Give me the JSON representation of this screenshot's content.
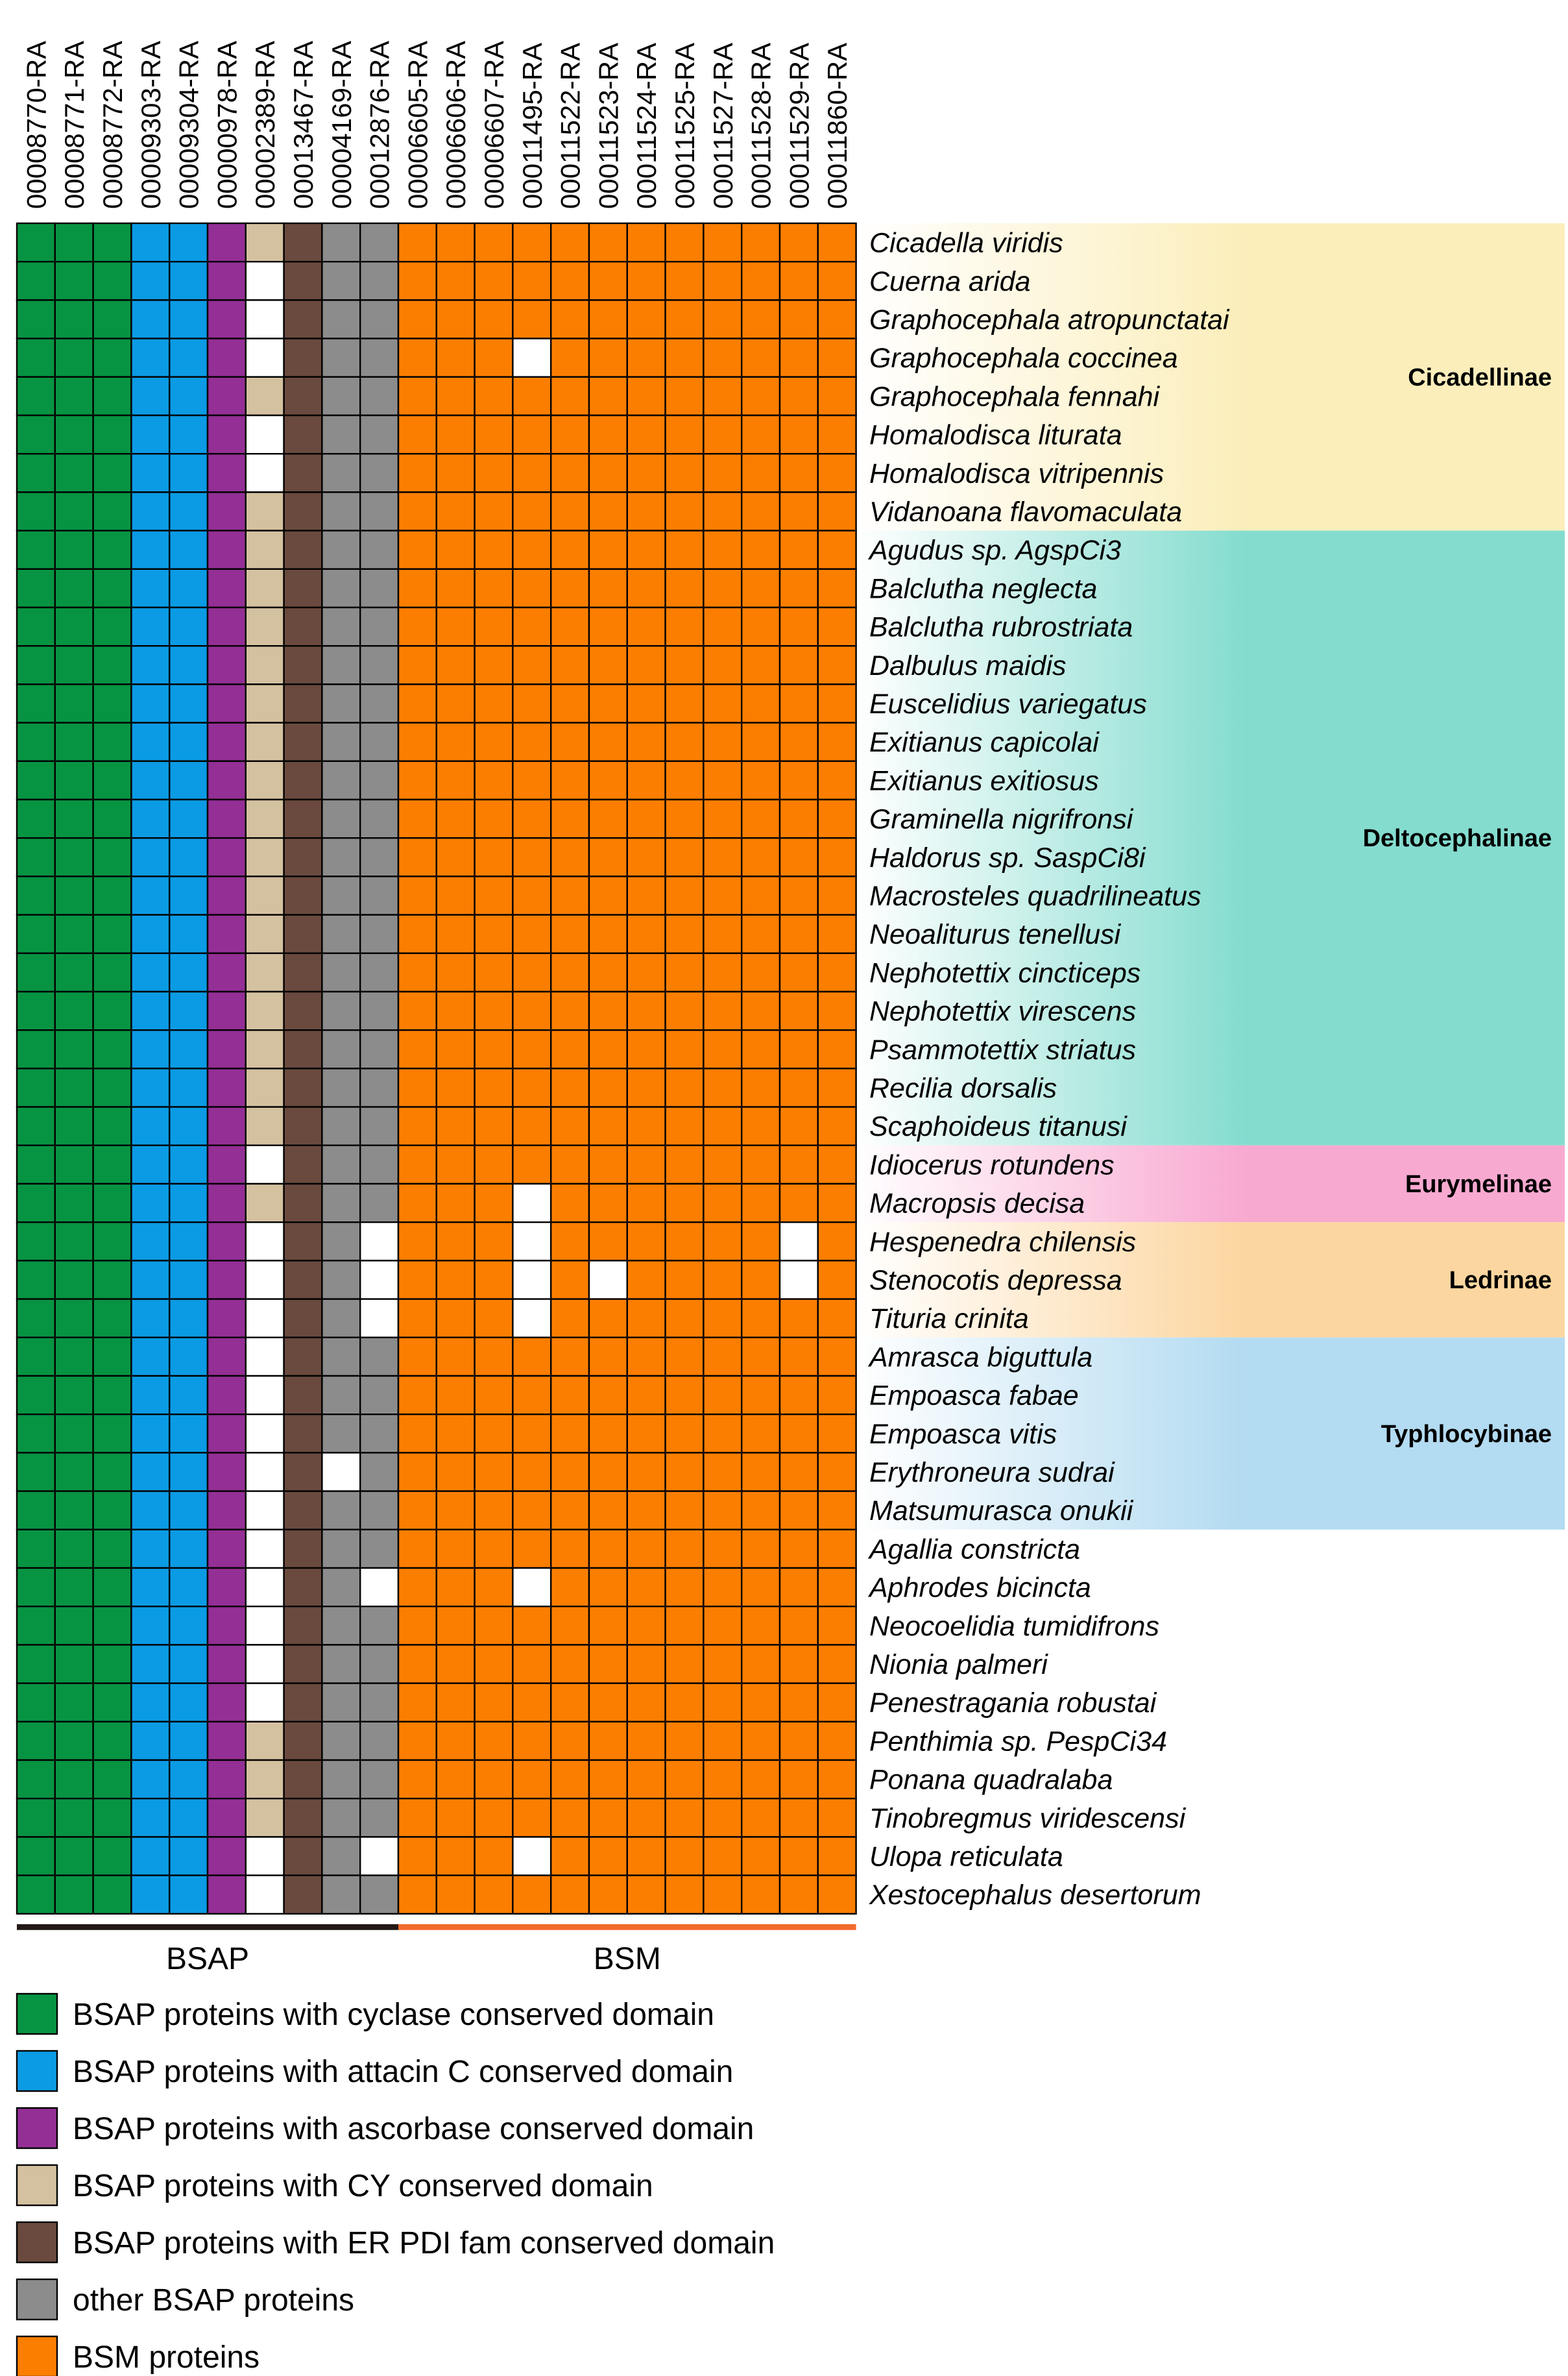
{
  "chart_data": {
    "type": "heatmap",
    "columns": [
      "00008770-RA",
      "00008771-RA",
      "00008772-RA",
      "00009303-RA",
      "00009304-RA",
      "00000978-RA",
      "00002389-RA",
      "00013467-RA",
      "00004169-RA",
      "00012876-RA",
      "00006605-RA",
      "00006606-RA",
      "00006607-RA",
      "00011495-RA",
      "00011522-RA",
      "00011523-RA",
      "00011524-RA",
      "00011525-RA",
      "00011527-RA",
      "00011528-RA",
      "00011529-RA",
      "00011860-RA"
    ],
    "column_categories": [
      "cyclase",
      "cyclase",
      "cyclase",
      "attacin",
      "attacin",
      "ascorbase",
      "cy",
      "erpdi",
      "other",
      "other",
      "bsm",
      "bsm",
      "bsm",
      "bsm",
      "bsm",
      "bsm",
      "bsm",
      "bsm",
      "bsm",
      "bsm",
      "bsm",
      "bsm"
    ],
    "species": [
      "Cicadella viridis",
      "Cuerna arida",
      "Graphocephala atropunctatai",
      "Graphocephala coccinea",
      "Graphocephala fennahi",
      "Homalodisca liturata",
      "Homalodisca vitripennis",
      "Vidanoana flavomaculata",
      "Agudus sp. AgspCi3",
      "Balclutha neglecta",
      "Balclutha rubrostriata",
      "Dalbulus maidis",
      "Euscelidius variegatus",
      "Exitianus capicolai",
      "Exitianus exitiosus",
      "Graminella nigrifronsi",
      "Haldorus sp. SaspCi8i",
      "Macrosteles quadrilineatus",
      "Neoaliturus tenellusi",
      "Nephotettix cincticeps",
      "Nephotettix virescens",
      "Psammotettix striatus",
      "Recilia dorsalis",
      "Scaphoideus titanusi",
      "Idiocerus rotundens",
      "Macropsis decisa",
      "Hespenedra chilensis",
      "Stenocotis depressa",
      "Tituria crinita",
      "Amrasca biguttula",
      "Empoasca fabae",
      "Empoasca vitis",
      "Erythroneura sudrai",
      "Matsumurasca onukii",
      "Agallia constricta",
      "Aphrodes bicincta",
      "Neocoelidia tumidifrons",
      "Nionia palmeri",
      "Penestragania robustai",
      "Penthimia sp. PespCi34",
      "Ponana quadralaba",
      "Tinobregmus viridescensi",
      "Ulopa reticulata",
      "Xestocephalus desertorum"
    ],
    "absent_cells": [
      [
        1,
        6
      ],
      [
        2,
        6
      ],
      [
        3,
        6
      ],
      [
        3,
        13
      ],
      [
        5,
        6
      ],
      [
        6,
        6
      ],
      [
        24,
        6
      ],
      [
        25,
        13
      ],
      [
        26,
        6
      ],
      [
        26,
        9
      ],
      [
        26,
        13
      ],
      [
        26,
        20
      ],
      [
        27,
        6
      ],
      [
        27,
        9
      ],
      [
        27,
        13
      ],
      [
        27,
        15
      ],
      [
        27,
        20
      ],
      [
        28,
        6
      ],
      [
        28,
        9
      ],
      [
        28,
        13
      ],
      [
        29,
        6
      ],
      [
        30,
        6
      ],
      [
        31,
        6
      ],
      [
        32,
        6
      ],
      [
        32,
        8
      ],
      [
        33,
        6
      ],
      [
        34,
        6
      ],
      [
        35,
        6
      ],
      [
        35,
        9
      ],
      [
        35,
        13
      ],
      [
        36,
        6
      ],
      [
        37,
        6
      ],
      [
        38,
        6
      ],
      [
        42,
        6
      ],
      [
        42,
        9
      ],
      [
        42,
        13
      ],
      [
        43,
        6
      ]
    ],
    "subfamilies": [
      {
        "name": "Cicadellinae",
        "first": 0,
        "last": 7,
        "color": "#fbeebb"
      },
      {
        "name": "Deltocephalinae",
        "first": 8,
        "last": 23,
        "color": "#84dccf"
      },
      {
        "name": "Eurymelinae",
        "first": 24,
        "last": 25,
        "color": "#f8a9d0"
      },
      {
        "name": "Ledrinae",
        "first": 26,
        "last": 28,
        "color": "#fcd6a0"
      },
      {
        "name": "Typhlocybinae",
        "first": 29,
        "last": 33,
        "color": "#b3dbf1"
      }
    ],
    "groups": [
      {
        "name": "BSAP",
        "first_col": 0,
        "last_col": 9,
        "color": "#231815"
      },
      {
        "name": "BSM",
        "first_col": 10,
        "last_col": 21,
        "color": "#f26a2b"
      }
    ],
    "legend": [
      {
        "key": "cyclase",
        "label": "BSAP proteins with cyclase conserved domain",
        "color": "#079442"
      },
      {
        "key": "attacin",
        "label": "BSAP proteins with attacin C conserved domain",
        "color": "#0b9be4"
      },
      {
        "key": "ascorbase",
        "label": "BSAP proteins with ascorbase conserved domain",
        "color": "#932f95"
      },
      {
        "key": "cy",
        "label": "BSAP proteins with CY conserved domain",
        "color": "#d4c1a0"
      },
      {
        "key": "erpdi",
        "label": "BSAP proteins with ER PDI fam conserved domain",
        "color": "#6a4a3e"
      },
      {
        "key": "other",
        "label": "other BSAP proteins",
        "color": "#8c8c8c"
      },
      {
        "key": "bsm",
        "label": "BSM proteins",
        "color": "#fb7e00"
      }
    ],
    "absent_color": "#ffffff"
  }
}
